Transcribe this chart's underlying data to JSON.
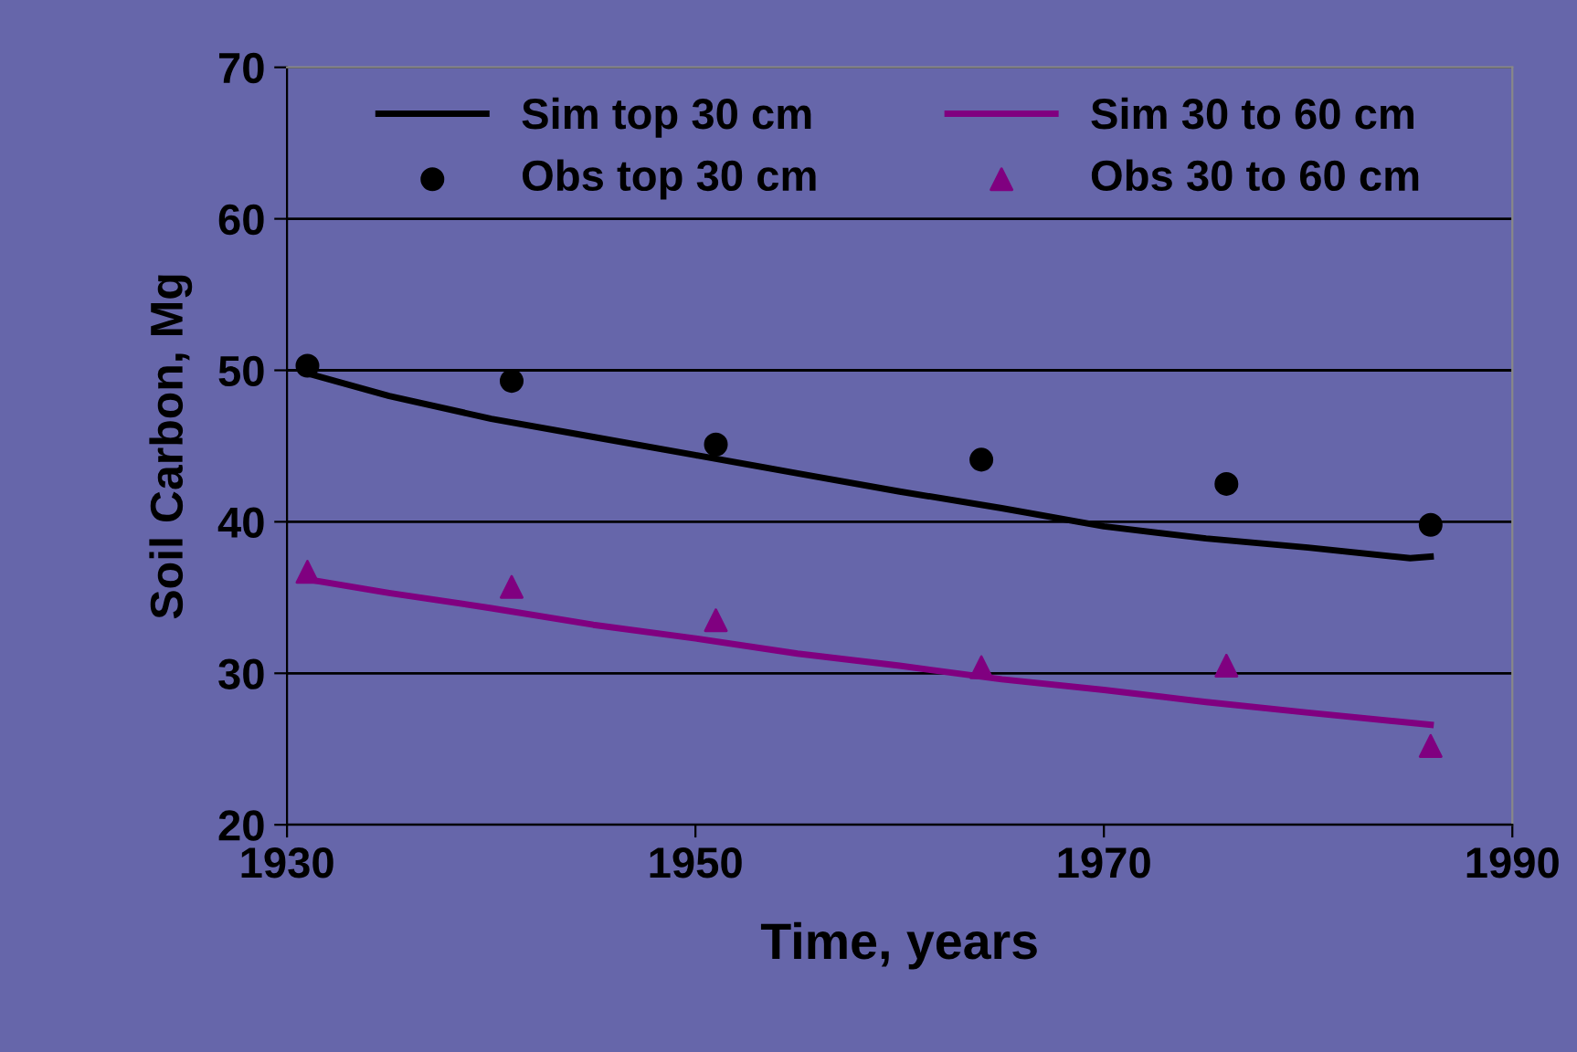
{
  "chart_data": {
    "type": "line",
    "xlabel": "Time, years",
    "ylabel": "Soil Carbon, Mg",
    "xlim": [
      1930,
      1990
    ],
    "xticks": [
      1930,
      1950,
      1970,
      1990
    ],
    "ylim": [
      20,
      70
    ],
    "yticks": [
      20,
      30,
      40,
      50,
      60,
      70
    ],
    "grid": "y",
    "legend": "top",
    "series": [
      {
        "name": "Sim top 30 cm",
        "color": "#000000",
        "marker": "none",
        "x": [
          1931,
          1935,
          1940,
          1945,
          1950,
          1955,
          1960,
          1965,
          1970,
          1975,
          1980,
          1985,
          1986
        ],
        "values": [
          49.8,
          48.3,
          46.8,
          45.6,
          44.4,
          43.2,
          42.0,
          40.9,
          39.7,
          38.9,
          38.3,
          37.6,
          37.7
        ]
      },
      {
        "name": "Obs top 30 cm",
        "type": "scatter",
        "color": "#000000",
        "marker": "circle",
        "x": [
          1931,
          1941,
          1951,
          1964,
          1976,
          1986
        ],
        "values": [
          50.3,
          49.3,
          45.1,
          44.1,
          42.5,
          39.8
        ]
      },
      {
        "name": "Sim 30 to 60 cm",
        "color": "#800080",
        "marker": "none",
        "x": [
          1931,
          1935,
          1940,
          1945,
          1950,
          1955,
          1960,
          1965,
          1970,
          1975,
          1980,
          1986
        ],
        "values": [
          36.2,
          35.3,
          34.3,
          33.2,
          32.3,
          31.3,
          30.5,
          29.6,
          28.9,
          28.1,
          27.4,
          26.6
        ]
      },
      {
        "name": "Obs 30 to 60 cm",
        "type": "scatter",
        "color": "#800080",
        "marker": "triangle",
        "x": [
          1931,
          1941,
          1951,
          1964,
          1976,
          1986
        ],
        "values": [
          36.7,
          35.7,
          33.5,
          30.4,
          30.5,
          25.2
        ]
      }
    ]
  }
}
